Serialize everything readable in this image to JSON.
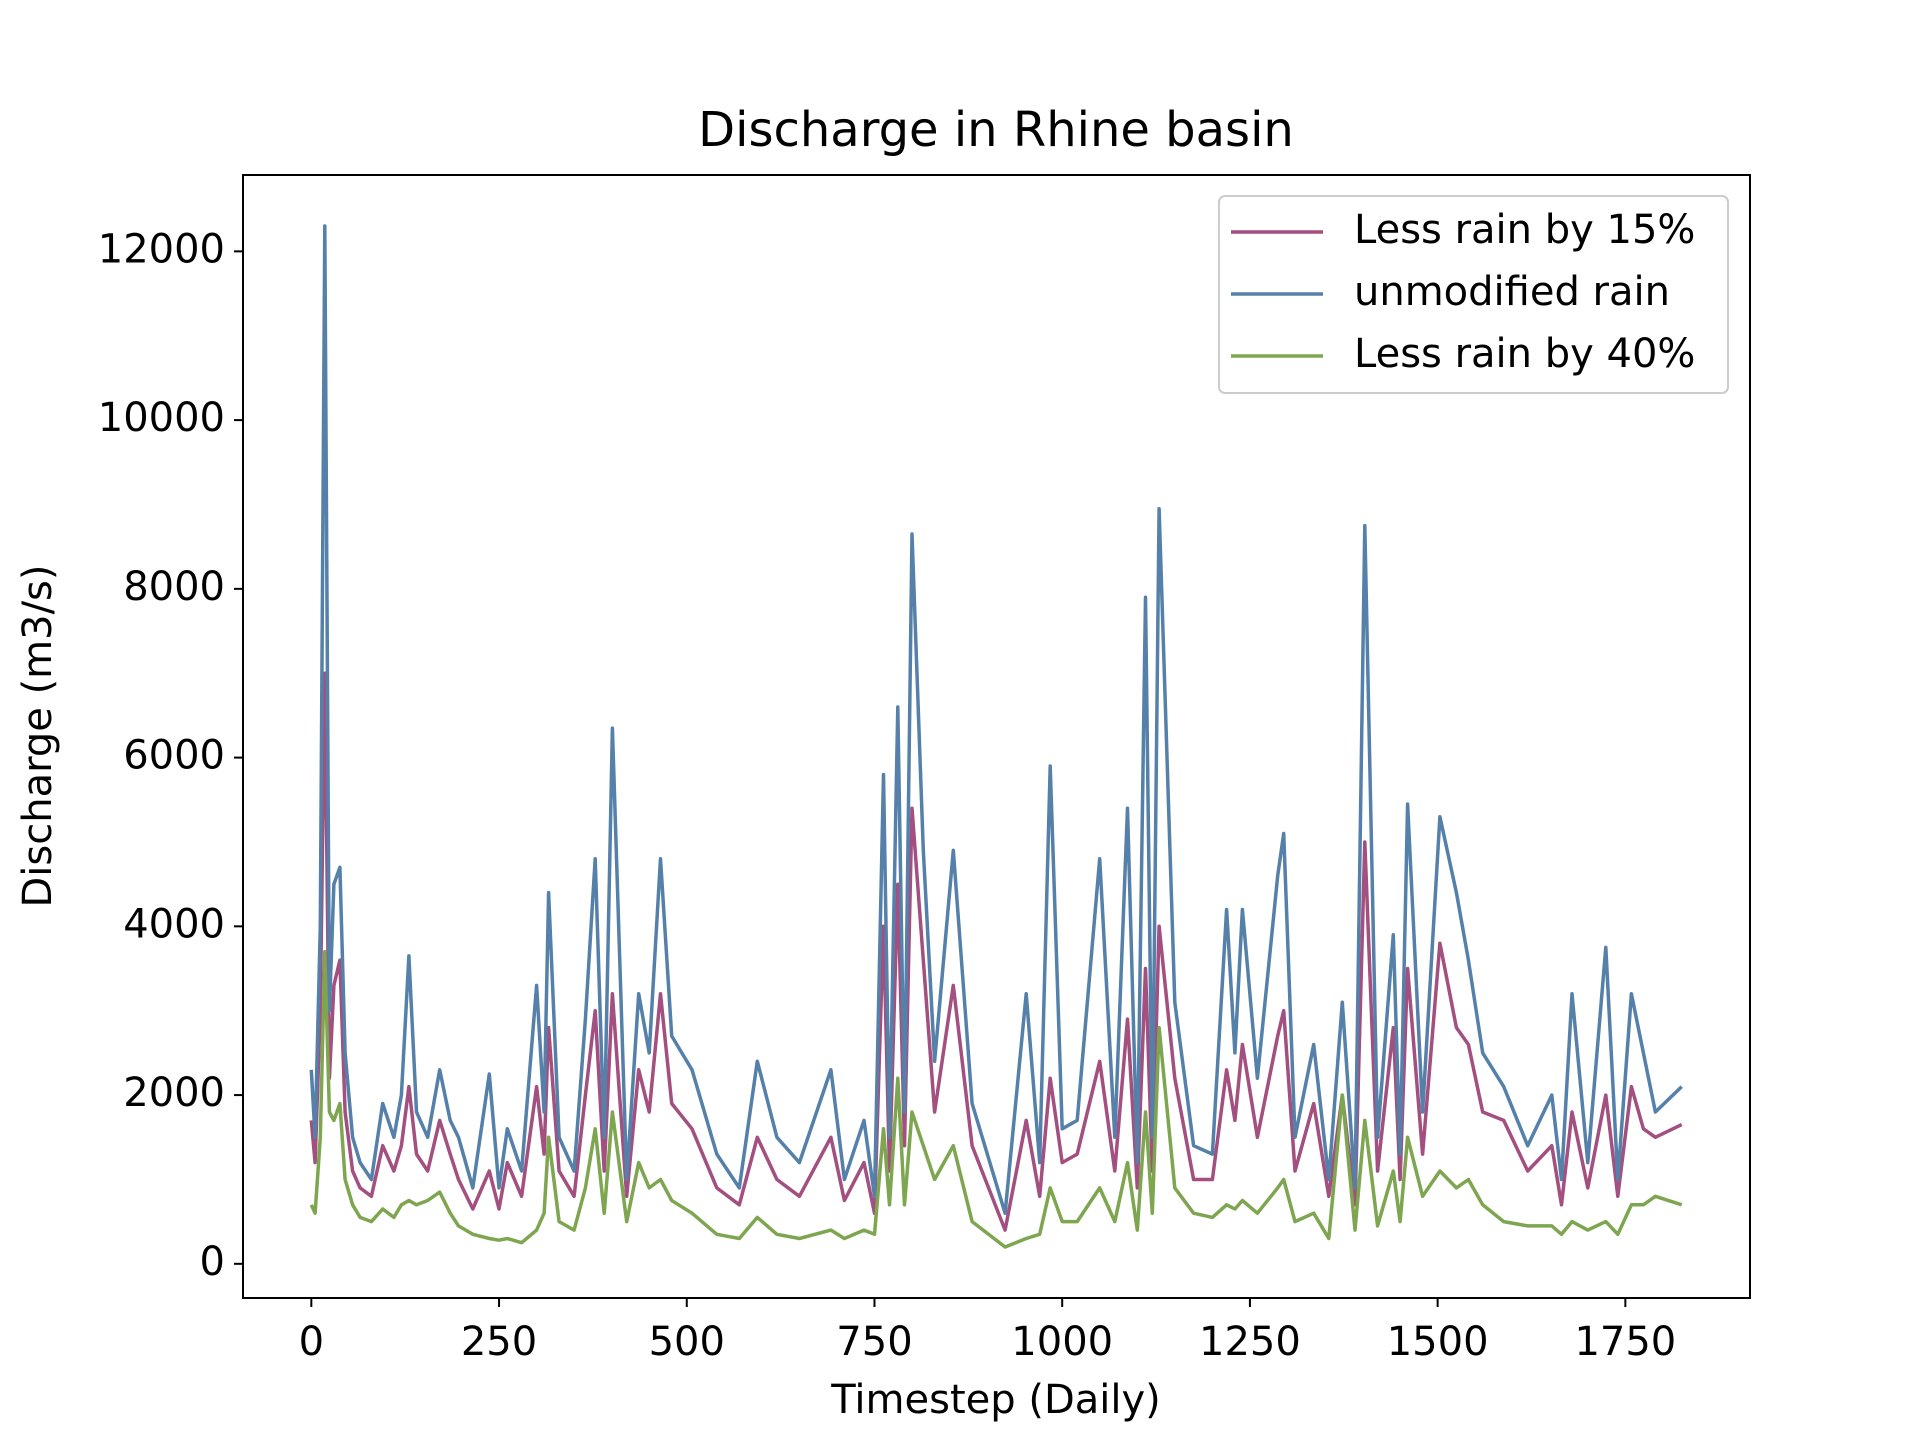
{
  "chart_data": {
    "type": "line",
    "title": "Discharge in Rhine basin",
    "x_label": "Timestep (Daily)",
    "y_label": "Discharge (m3/s)",
    "x": [
      0,
      5,
      12,
      18,
      24,
      30,
      38,
      45,
      55,
      65,
      80,
      95,
      110,
      120,
      130,
      140,
      155,
      171,
      185,
      196,
      215,
      237,
      250,
      261,
      280,
      300,
      310,
      316,
      330,
      350,
      365,
      378,
      390,
      401,
      420,
      436,
      450,
      465,
      480,
      507,
      540,
      570,
      594,
      620,
      650,
      692,
      710,
      736,
      750,
      762,
      770,
      781,
      790,
      800,
      815,
      830,
      855,
      880,
      924,
      952,
      970,
      984,
      1000,
      1020,
      1050,
      1070,
      1087,
      1100,
      1111,
      1120,
      1129,
      1150,
      1175,
      1200,
      1219,
      1230,
      1240,
      1260,
      1287,
      1295,
      1310,
      1335,
      1355,
      1373,
      1390,
      1403,
      1420,
      1441,
      1450,
      1460,
      1480,
      1503,
      1525,
      1541,
      1560,
      1588,
      1620,
      1652,
      1665,
      1679,
      1700,
      1724,
      1740,
      1758,
      1774,
      1790,
      1825
    ],
    "series": [
      {
        "name": "Less rain by 15%",
        "color": "#a34f7f",
        "values": [
          1700,
          1200,
          3000,
          7000,
          2200,
          3300,
          3600,
          1800,
          1100,
          900,
          800,
          1400,
          1100,
          1400,
          2100,
          1300,
          1100,
          1700,
          1300,
          1000,
          650,
          1100,
          650,
          1200,
          800,
          2100,
          1300,
          2800,
          1100,
          800,
          2000,
          3000,
          1100,
          3200,
          800,
          2300,
          1800,
          3200,
          1900,
          1600,
          900,
          700,
          1500,
          1000,
          800,
          1500,
          750,
          1200,
          600,
          4000,
          1100,
          4500,
          1400,
          5400,
          3600,
          1800,
          3300,
          1400,
          400,
          1700,
          800,
          2200,
          1200,
          1300,
          2400,
          1100,
          2900,
          900,
          3500,
          1100,
          4000,
          2200,
          1000,
          1000,
          2300,
          1700,
          2600,
          1500,
          2700,
          3000,
          1100,
          1900,
          800,
          2000,
          700,
          5000,
          1100,
          2800,
          1000,
          3500,
          1300,
          3800,
          2800,
          2600,
          1800,
          1700,
          1100,
          1400,
          700,
          1800,
          900,
          2000,
          800,
          2100,
          1600,
          1500,
          1650
        ]
      },
      {
        "name": "unmodified rain",
        "color": "#5580a9",
        "values": [
          2300,
          1500,
          4000,
          12300,
          3000,
          4500,
          4700,
          2500,
          1500,
          1200,
          1000,
          1900,
          1500,
          2000,
          3650,
          1800,
          1500,
          2300,
          1700,
          1500,
          900,
          2250,
          900,
          1600,
          1100,
          3300,
          1800,
          4400,
          1500,
          1100,
          2900,
          4800,
          1500,
          6350,
          1000,
          3200,
          2500,
          4800,
          2700,
          2300,
          1300,
          900,
          2400,
          1500,
          1200,
          2300,
          1000,
          1700,
          800,
          5800,
          1500,
          6600,
          1800,
          8650,
          4900,
          2400,
          4900,
          1900,
          600,
          3200,
          1200,
          5900,
          1600,
          1700,
          4800,
          1500,
          5400,
          1200,
          7900,
          1500,
          8950,
          3100,
          1400,
          1300,
          4200,
          2500,
          4200,
          2200,
          4600,
          5100,
          1500,
          2600,
          1000,
          3100,
          900,
          8750,
          1500,
          3900,
          1300,
          5450,
          1800,
          5300,
          4400,
          3600,
          2500,
          2100,
          1400,
          2000,
          1000,
          3200,
          1200,
          3750,
          1000,
          3200,
          2500,
          1800,
          2100
        ]
      },
      {
        "name": "Less rain by 40%",
        "color": "#7ea54f",
        "values": [
          700,
          600,
          1500,
          3700,
          1800,
          1700,
          1900,
          1000,
          700,
          550,
          500,
          650,
          550,
          700,
          750,
          700,
          750,
          850,
          600,
          450,
          350,
          300,
          280,
          300,
          250,
          400,
          600,
          1500,
          500,
          400,
          900,
          1600,
          600,
          1800,
          500,
          1200,
          900,
          1000,
          750,
          600,
          350,
          300,
          550,
          350,
          300,
          400,
          300,
          400,
          350,
          1600,
          700,
          2200,
          700,
          1800,
          1400,
          1000,
          1400,
          500,
          200,
          300,
          350,
          900,
          500,
          500,
          900,
          500,
          1200,
          400,
          1800,
          600,
          2800,
          900,
          600,
          550,
          700,
          650,
          750,
          600,
          900,
          1000,
          500,
          600,
          300,
          2000,
          400,
          1700,
          450,
          1100,
          500,
          1500,
          800,
          1100,
          900,
          1000,
          700,
          500,
          450,
          450,
          350,
          500,
          400,
          500,
          350,
          700,
          700,
          800,
          700
        ]
      }
    ],
    "xlim": [
      -91,
      1916
    ],
    "ylim": [
      -405,
      12905
    ],
    "xticks": [
      0,
      250,
      500,
      750,
      1000,
      1250,
      1500,
      1750
    ],
    "yticks": [
      0,
      2000,
      4000,
      6000,
      8000,
      10000,
      12000
    ],
    "legend": "upper right",
    "grid": false
  }
}
